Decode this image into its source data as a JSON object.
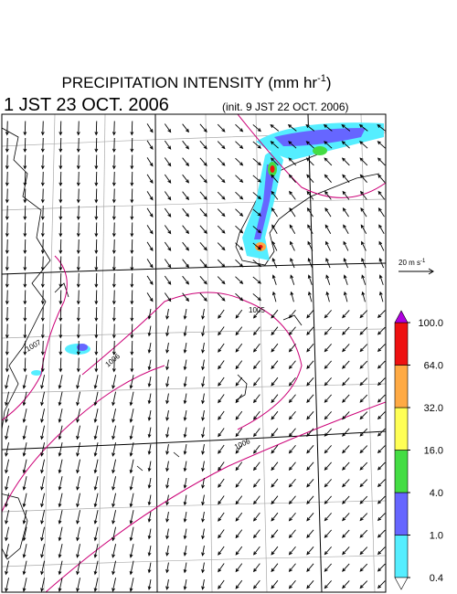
{
  "header": {
    "title": "PRECIPITATION INTENSITY (mm hr",
    "title_exponent": "-1",
    "title_close": ")",
    "valid_time": "1 JST 23 OCT. 2006",
    "init_time": "(init. 9 JST 22 OCT. 2006)"
  },
  "legend": {
    "vector_unit": "20 m s",
    "vector_exponent": "-1",
    "levels": [
      {
        "value": 0.4,
        "label": "0.4"
      },
      {
        "value": 1,
        "label": "1.0"
      },
      {
        "value": 4,
        "label": "4.0"
      },
      {
        "value": 16,
        "label": "16.0"
      },
      {
        "value": 32,
        "label": "32.0"
      },
      {
        "value": 64,
        "label": "64.0"
      },
      {
        "value": 100,
        "label": "100.0"
      }
    ],
    "colors": [
      "#55eeff",
      "#6666ff",
      "#44dd44",
      "#ffff55",
      "#ffaa44",
      "#ee1111"
    ],
    "over_color": "#b000e0",
    "under_color": "#ffffff"
  },
  "map": {
    "contour_labels": [
      "1007",
      "1006",
      "1005",
      "1006"
    ],
    "contour_color": "#cc0077"
  }
}
